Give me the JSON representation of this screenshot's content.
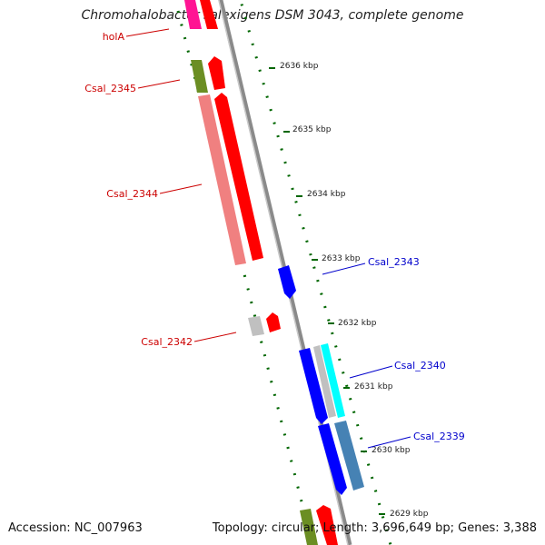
{
  "title": "Chromohalobacter salexigens DSM 3043, complete genome",
  "footer": {
    "accession": "Accession: NC_007963",
    "summary": "Topology: circular; Length: 3,696,649 bp; Genes: 3,388"
  },
  "colors": {
    "forward_label": "#cc0000",
    "reverse_label": "#0000cc",
    "tick": "#006600",
    "backbone": "#808080",
    "forward_cds": "#ff0000",
    "forward_cds_light": "#f08080",
    "reverse_cds": "#0000ff",
    "reverse_cds_steel": "#4682b4",
    "reverse_cds_cyan": "#00ffff",
    "pink_cds": "#ff1493",
    "olive_cds": "#6b8e23",
    "grey_cds": "#c0c0c0"
  },
  "scale": {
    "kbp_labels": [
      "2636 kbp",
      "2635 kbp",
      "2634 kbp",
      "2633 kbp",
      "2632 kbp",
      "2631 kbp",
      "2630 kbp",
      "2629 kbp"
    ]
  },
  "genes": {
    "forward": [
      "holA",
      "Csal_2345",
      "Csal_2344",
      "Csal_2342"
    ],
    "reverse": [
      "Csal_2343",
      "Csal_2340",
      "Csal_2339"
    ]
  }
}
